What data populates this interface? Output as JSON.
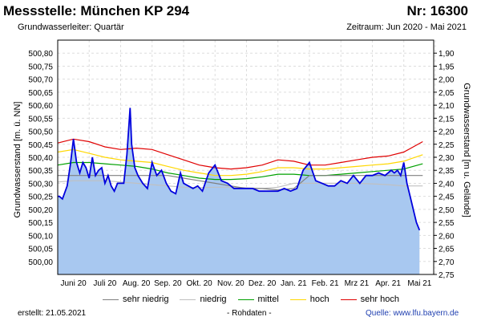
{
  "header": {
    "title": "Messstelle: München KP 294",
    "number": "Nr: 16300",
    "aquifer": "Grundwasserleiter: Quartär",
    "period": "Zeitraum: Jun 2020 - Mai 2021"
  },
  "footer": {
    "created_label": "erstellt:",
    "created_date": "21.05.2021",
    "raw_note": "- Rohdaten -",
    "source_label": "Quelle:",
    "source_url": "www.lfu.bayern.de"
  },
  "legend": [
    {
      "label": "sehr niedrig",
      "color": "#808080"
    },
    {
      "label": "niedrig",
      "color": "#c0c0c0"
    },
    {
      "label": "mittel",
      "color": "#00a000"
    },
    {
      "label": "hoch",
      "color": "#ffd700"
    },
    {
      "label": "sehr hoch",
      "color": "#e00000"
    }
  ],
  "chart_data": {
    "type": "area",
    "ylabel_left": "Grundwasserstand [m. ü. NN]",
    "ylabel_right": "Grundwasserstand [m u. Gelände]",
    "ylim_left": [
      499.95,
      500.85
    ],
    "ylim_right": [
      2.75,
      1.85
    ],
    "yticks_left": [
      "500,80",
      "500,75",
      "500,70",
      "500,65",
      "500,60",
      "500,55",
      "500,50",
      "500,45",
      "500,40",
      "500,35",
      "500,30",
      "500,25",
      "500,20",
      "500,15",
      "500,10",
      "500,05",
      "500,00"
    ],
    "yticks_right": [
      "1,90",
      "1,95",
      "2,00",
      "2,05",
      "2,10",
      "2,15",
      "2,20",
      "2,25",
      "2,30",
      "2,35",
      "2,40",
      "2,45",
      "2,50",
      "2,55",
      "2,60",
      "2,65",
      "2,70",
      "2,75"
    ],
    "xticks": [
      "Juni 20",
      "Juli 20",
      "Aug. 20",
      "Sep. 20",
      "Okt. 20",
      "Nov. 20",
      "Dez. 20",
      "Jan. 21",
      "Feb. 21",
      "Mrz 21",
      "Apr. 21",
      "Mai 21"
    ],
    "grid": true,
    "legend_position": "bottom",
    "series": [
      {
        "name": "sehr hoch",
        "color": "#e00000",
        "x": [
          0,
          0.5,
          1,
          1.5,
          2,
          2.5,
          3,
          3.5,
          4,
          4.5,
          5,
          5.5,
          6,
          6.5,
          7,
          7.5,
          8,
          8.5,
          9,
          9.5,
          10,
          10.5,
          11,
          11.6
        ],
        "values": [
          500.455,
          500.47,
          500.46,
          500.44,
          500.43,
          500.435,
          500.43,
          500.41,
          500.39,
          500.37,
          500.36,
          500.355,
          500.36,
          500.37,
          500.39,
          500.385,
          500.37,
          500.37,
          500.38,
          500.39,
          500.4,
          500.405,
          500.42,
          500.46
        ]
      },
      {
        "name": "hoch",
        "color": "#ffd700",
        "x": [
          0,
          0.5,
          1,
          1.5,
          2,
          2.5,
          3,
          3.5,
          4,
          4.5,
          5,
          5.5,
          6,
          6.5,
          7,
          7.5,
          8,
          8.5,
          9,
          9.5,
          10,
          10.5,
          11,
          11.6
        ],
        "values": [
          500.42,
          500.43,
          500.415,
          500.4,
          500.39,
          500.385,
          500.38,
          500.365,
          500.35,
          500.34,
          500.33,
          500.33,
          500.335,
          500.345,
          500.36,
          500.36,
          500.355,
          500.355,
          500.36,
          500.365,
          500.37,
          500.375,
          500.385,
          500.41
        ]
      },
      {
        "name": "mittel",
        "color": "#00a000",
        "x": [
          0,
          0.5,
          1,
          1.5,
          2,
          2.5,
          3,
          3.5,
          4,
          4.5,
          5,
          5.5,
          6,
          6.5,
          7,
          7.5,
          8,
          8.5,
          9,
          9.5,
          10,
          10.5,
          11,
          11.6
        ],
        "values": [
          500.37,
          500.38,
          500.38,
          500.375,
          500.37,
          500.365,
          500.355,
          500.34,
          500.33,
          500.32,
          500.315,
          500.315,
          500.318,
          500.325,
          500.335,
          500.335,
          500.33,
          500.33,
          500.335,
          500.34,
          500.345,
          500.35,
          500.355,
          500.375
        ]
      },
      {
        "name": "niedrig",
        "color": "#c0c0c0",
        "x": [
          0,
          0.5,
          1,
          1.5,
          2,
          2.5,
          3,
          3.5,
          4,
          4.5,
          5,
          5.5,
          6,
          6.5,
          7,
          7.5,
          8,
          8.5,
          9,
          9.5,
          10,
          10.5,
          11,
          11.6
        ],
        "values": [
          500.305,
          500.31,
          500.31,
          500.31,
          500.305,
          500.3,
          500.295,
          500.29,
          500.285,
          500.283,
          500.285,
          500.285,
          500.283,
          500.28,
          500.285,
          500.3,
          500.3,
          500.3,
          500.3,
          500.3,
          500.298,
          500.295,
          500.29,
          500.29
        ]
      },
      {
        "name": "sehr niedrig",
        "color": "#808080",
        "x": [
          0,
          0.5,
          1,
          1.5,
          2,
          2.5,
          3,
          3.5,
          4,
          4.5,
          5,
          5.5,
          6,
          6.5,
          7,
          7.5,
          8,
          8.5,
          9,
          9.5,
          10,
          10.5,
          11,
          11.6
        ],
        "values": [
          500.33,
          500.33,
          500.33,
          500.33,
          500.33,
          500.33,
          500.33,
          500.33,
          500.32,
          500.31,
          500.3,
          500.29,
          500.28,
          500.28,
          500.275,
          500.28,
          500.33,
          500.33,
          500.33,
          500.33,
          500.33,
          500.33,
          500.33,
          500.33
        ]
      },
      {
        "name": "Messwerte",
        "color": "#0000dd",
        "fill": "#a8c8f0",
        "x": [
          0,
          0.05,
          0.15,
          0.3,
          0.4,
          0.5,
          0.6,
          0.7,
          0.8,
          0.9,
          1.0,
          1.1,
          1.2,
          1.3,
          1.4,
          1.5,
          1.6,
          1.7,
          1.8,
          1.9,
          2.0,
          2.1,
          2.2,
          2.3,
          2.35,
          2.45,
          2.55,
          2.7,
          2.85,
          3.0,
          3.15,
          3.3,
          3.45,
          3.6,
          3.75,
          3.9,
          4.0,
          4.15,
          4.3,
          4.45,
          4.6,
          4.8,
          5.0,
          5.2,
          5.4,
          5.6,
          5.8,
          6.0,
          6.2,
          6.4,
          6.6,
          6.8,
          7.0,
          7.2,
          7.4,
          7.6,
          7.8,
          8.0,
          8.2,
          8.4,
          8.6,
          8.8,
          9.0,
          9.2,
          9.4,
          9.6,
          9.8,
          10.0,
          10.2,
          10.4,
          10.5,
          10.6,
          10.7,
          10.8,
          10.9,
          11.0,
          11.1,
          11.2,
          11.3,
          11.4,
          11.5
        ],
        "values": [
          500.25,
          500.25,
          500.24,
          500.29,
          500.37,
          500.47,
          500.38,
          500.34,
          500.38,
          500.36,
          500.32,
          500.4,
          500.33,
          500.35,
          500.36,
          500.3,
          500.33,
          500.29,
          500.27,
          500.3,
          500.3,
          500.3,
          500.41,
          500.59,
          500.45,
          500.36,
          500.33,
          500.3,
          500.28,
          500.38,
          500.33,
          500.35,
          500.3,
          500.27,
          500.26,
          500.34,
          500.3,
          500.29,
          500.28,
          500.29,
          500.27,
          500.34,
          500.37,
          500.31,
          500.3,
          500.28,
          500.28,
          500.28,
          500.28,
          500.27,
          500.27,
          500.27,
          500.27,
          500.28,
          500.27,
          500.28,
          500.35,
          500.38,
          500.31,
          500.3,
          500.29,
          500.29,
          500.31,
          500.3,
          500.33,
          500.3,
          500.33,
          500.33,
          500.34,
          500.33,
          500.34,
          500.35,
          500.34,
          500.35,
          500.33,
          500.38,
          500.3,
          500.25,
          500.2,
          500.15,
          500.12
        ]
      }
    ]
  }
}
